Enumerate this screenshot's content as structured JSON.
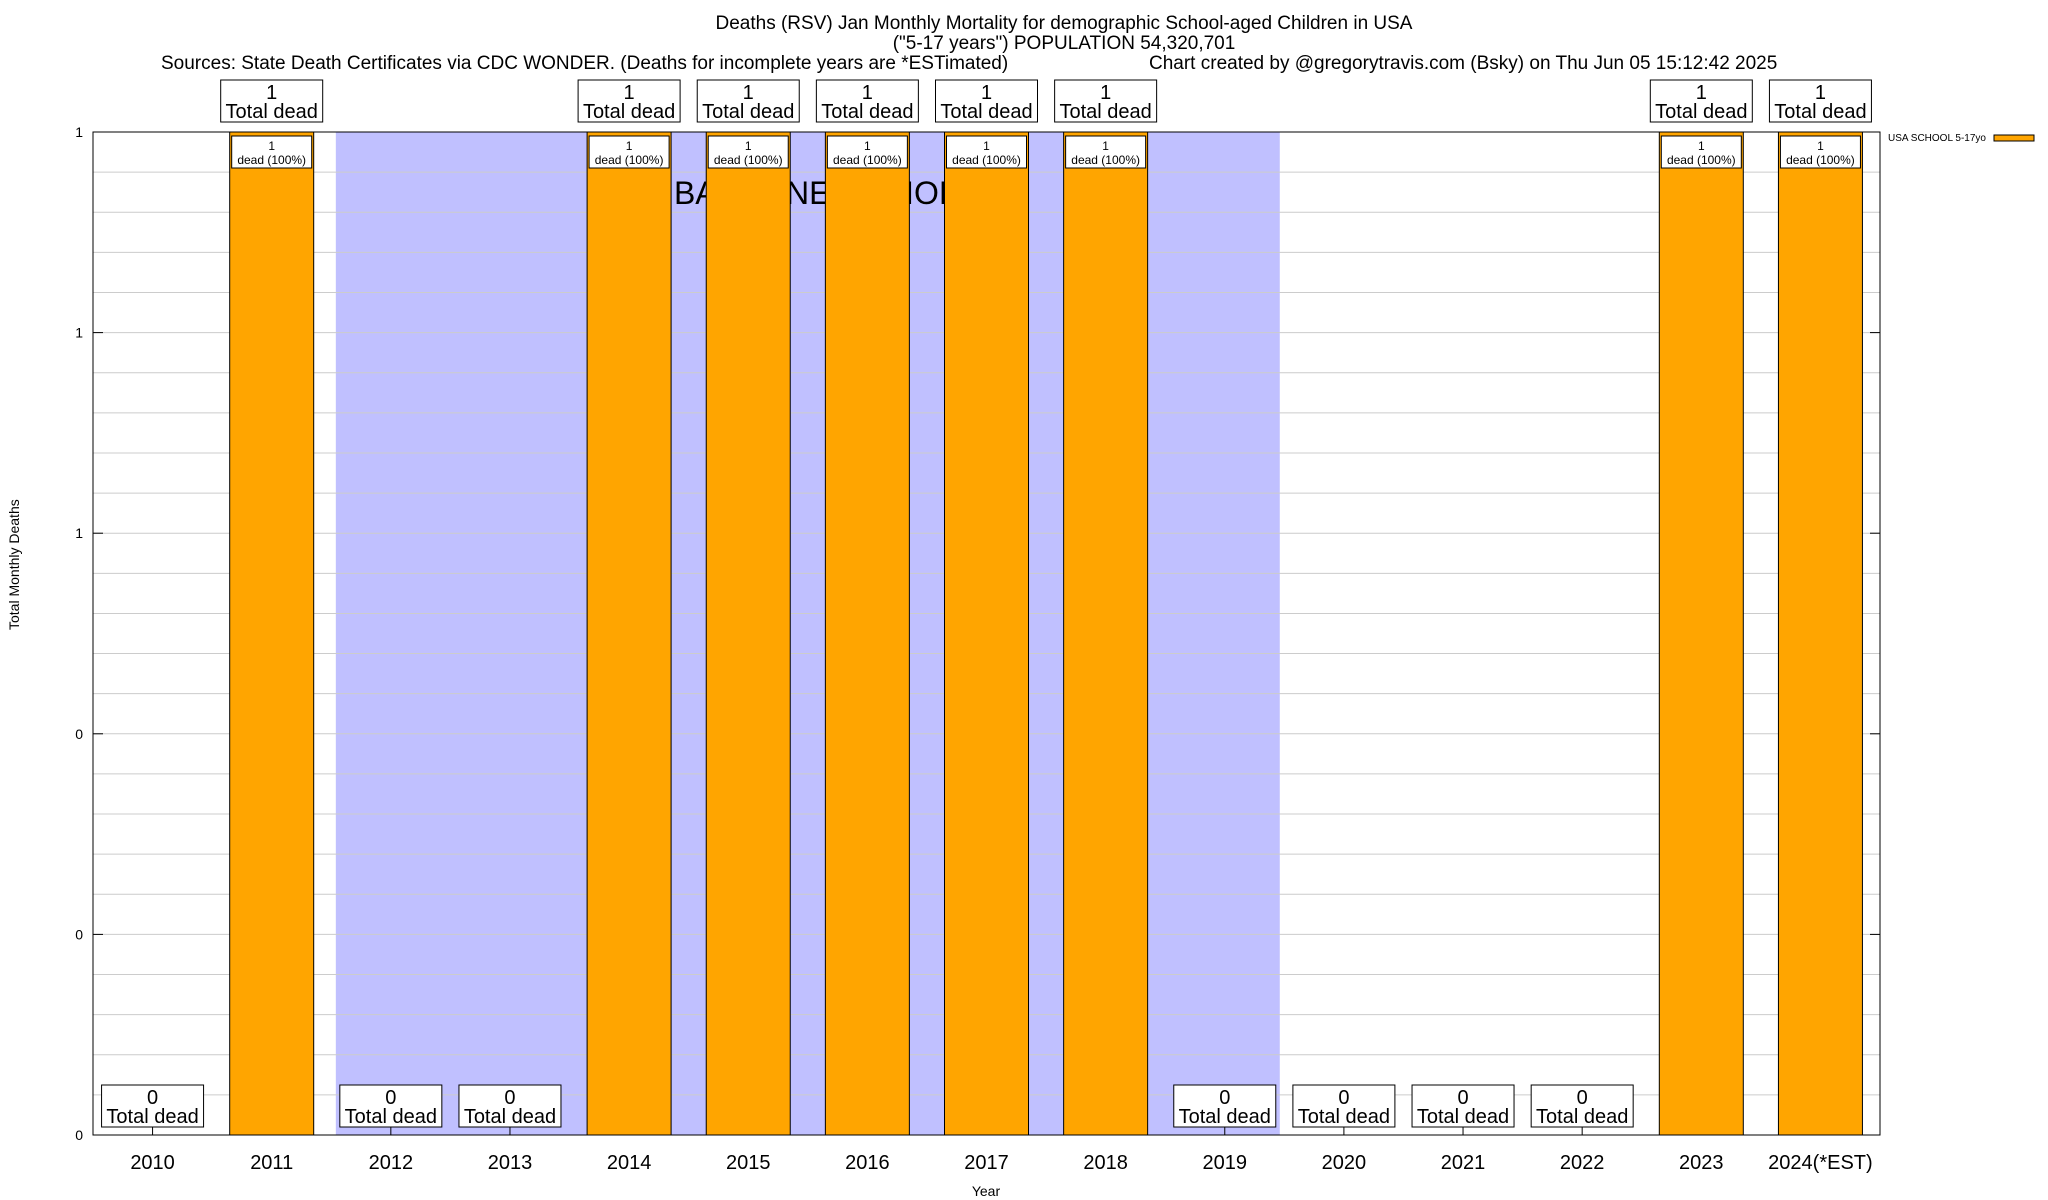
{
  "title": {
    "line1": "Deaths (RSV) Jan Monthly Mortality for demographic School-aged Children in USA",
    "line2": "(\"5-17 years\") POPULATION 54,320,701",
    "sources": "Sources: State Death Certificates via CDC WONDER. (Deaths for incomplete years are *ESTimated)",
    "credit": "Chart created by @gregorytravis.com (Bsky) on Thu Jun 05 15:12:42 2025"
  },
  "chart_data": {
    "type": "bar",
    "categories": [
      "2010",
      "2011",
      "2012",
      "2013",
      "2014",
      "2015",
      "2016",
      "2017",
      "2018",
      "2019",
      "2020",
      "2021",
      "2022",
      "2023",
      "2024(*EST)"
    ],
    "values": [
      0,
      1,
      0,
      0,
      1,
      1,
      1,
      1,
      1,
      0,
      0,
      0,
      0,
      1,
      1
    ],
    "series": [
      {
        "name": "USA SCHOOL 5-17yo",
        "color": "#ffa500",
        "values": [
          0,
          1,
          0,
          0,
          1,
          1,
          1,
          1,
          1,
          0,
          0,
          0,
          0,
          1,
          1
        ]
      }
    ],
    "xlabel": "Year",
    "ylabel": "Total Monthly Deaths",
    "ylim": [
      0,
      1
    ],
    "ytick_labels": [
      "0",
      "0",
      "0",
      "1",
      "1",
      "1"
    ],
    "total_label_suffix": "Total dead",
    "share_labels": [
      "",
      "dead (100%)",
      "",
      "",
      "dead (100%)",
      "dead (100%)",
      "dead (100%)",
      "dead (100%)",
      "dead (100%)",
      "",
      "",
      "",
      "",
      "dead (100%)",
      "dead (100%)"
    ],
    "baseline_period": {
      "label": "BASELINE PERIOD",
      "from": "2012",
      "to": "2019",
      "color": "#c0c0ff"
    },
    "legend_position": "top-right",
    "grid": true
  }
}
